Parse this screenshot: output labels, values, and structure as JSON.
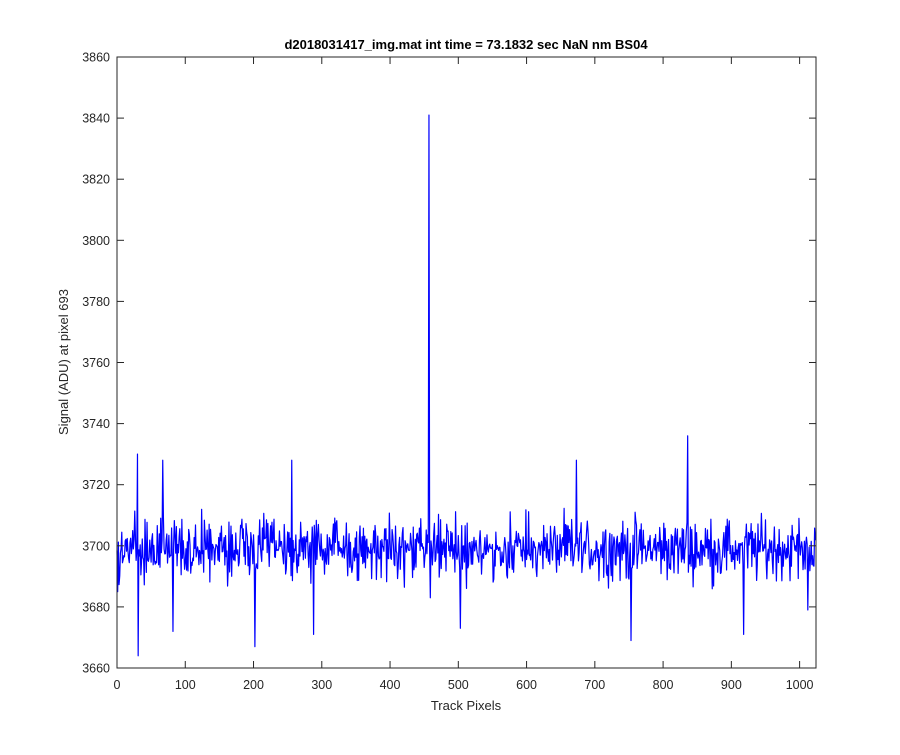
{
  "chart_data": {
    "type": "line",
    "title": "d2018031417_img.mat int time = 73.1832 sec  NaN nm BS04",
    "xlabel": "Track Pixels",
    "ylabel": "Signal (ADU) at pixel 693",
    "xlim": [
      0,
      1024
    ],
    "ylim": [
      3660,
      3860
    ],
    "xticks": [
      0,
      100,
      200,
      300,
      400,
      500,
      600,
      700,
      800,
      900,
      1000
    ],
    "yticks": [
      3660,
      3680,
      3700,
      3720,
      3740,
      3760,
      3780,
      3800,
      3820,
      3840,
      3860
    ],
    "grid": false,
    "series_color": "#0000ff",
    "baseline": 3699,
    "noise_amplitude": 9,
    "num_points": 1024,
    "notable_points": [
      {
        "x": 1,
        "y": 3685
      },
      {
        "x": 30,
        "y": 3730
      },
      {
        "x": 31,
        "y": 3664
      },
      {
        "x": 67,
        "y": 3728
      },
      {
        "x": 82,
        "y": 3672
      },
      {
        "x": 202,
        "y": 3667
      },
      {
        "x": 256,
        "y": 3728
      },
      {
        "x": 288,
        "y": 3671
      },
      {
        "x": 457,
        "y": 3841
      },
      {
        "x": 459,
        "y": 3683
      },
      {
        "x": 503,
        "y": 3673
      },
      {
        "x": 673,
        "y": 3728
      },
      {
        "x": 753,
        "y": 3669
      },
      {
        "x": 836,
        "y": 3736
      },
      {
        "x": 918,
        "y": 3671
      },
      {
        "x": 1012,
        "y": 3679
      }
    ]
  },
  "colors": {
    "series": "#0000ff",
    "axes": "#262626",
    "background": "#ffffff"
  }
}
